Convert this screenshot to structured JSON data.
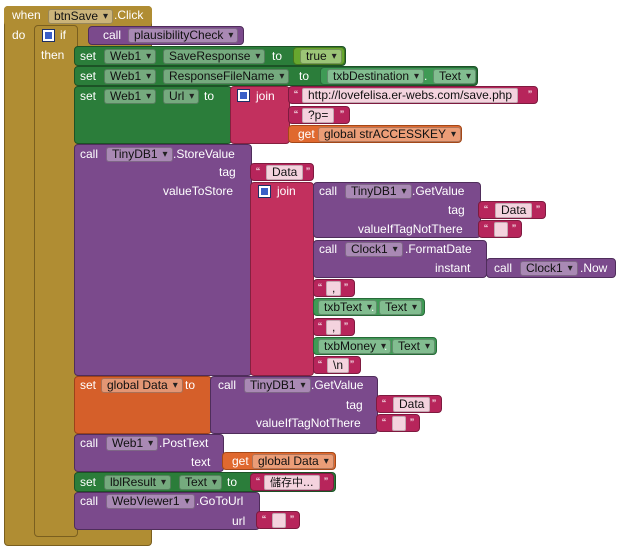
{
  "event": {
    "when": "when",
    "component": "btnSave",
    "event": ".Click",
    "do": "do"
  },
  "if_block": {
    "if": "if",
    "then": "then",
    "call": "call",
    "procedure": "plausibilityCheck"
  },
  "set1": {
    "set": "set",
    "component": "Web1",
    "property": "SaveResponse",
    "to": "to",
    "value": "true"
  },
  "set2": {
    "set": "set",
    "component": "Web1",
    "property": "ResponseFileName",
    "to": "to",
    "value_component": "txbDestination",
    "value_property": "Text"
  },
  "set3": {
    "set": "set",
    "component": "Web1",
    "property": "Url",
    "to": "to",
    "join": "join",
    "text1": "http://lovefelisa.er-webs.com/save.php",
    "text2": "?p=",
    "get": "get",
    "global_var": "global strACCESSKEY"
  },
  "store": {
    "call": "call",
    "component": "TinyDB1",
    "method": ".StoreValue",
    "tag_label": "tag",
    "tag_value": "Data",
    "value_label": "valueToStore",
    "join": "join",
    "get_call": "call",
    "get_component": "TinyDB1",
    "get_method": ".GetValue",
    "get_tag_label": "tag",
    "get_tag_value": "Data",
    "get_default_label": "valueIfTagNotThere",
    "get_default_value": "",
    "fmt_call": "call",
    "fmt_component": "Clock1",
    "fmt_method": ".FormatDate",
    "fmt_instant_label": "instant",
    "now_call": "call",
    "now_component": "Clock1",
    "now_method": ".Now",
    "sep1": ",",
    "txt_component": "txbText",
    "txt_property": "Text",
    "sep2": ",",
    "money_component": "txbMoney",
    "money_property": "Text",
    "newline": "\\n"
  },
  "setdata": {
    "set": "set",
    "var": "global Data",
    "to": "to",
    "call": "call",
    "component": "TinyDB1",
    "method": ".GetValue",
    "tag_label": "tag",
    "tag_value": "Data",
    "default_label": "valueIfTagNotThere",
    "default_value": ""
  },
  "post": {
    "call": "call",
    "component": "Web1",
    "method": ".PostText",
    "text_label": "text",
    "get": "get",
    "var": "global Data"
  },
  "setres": {
    "set": "set",
    "component": "lblResult",
    "property": "Text",
    "to": "to",
    "value": "儲存中..."
  },
  "goto": {
    "call": "call",
    "component": "WebViewer1",
    "method": ".GoToUrl",
    "url_label": "url",
    "url_value": ""
  }
}
